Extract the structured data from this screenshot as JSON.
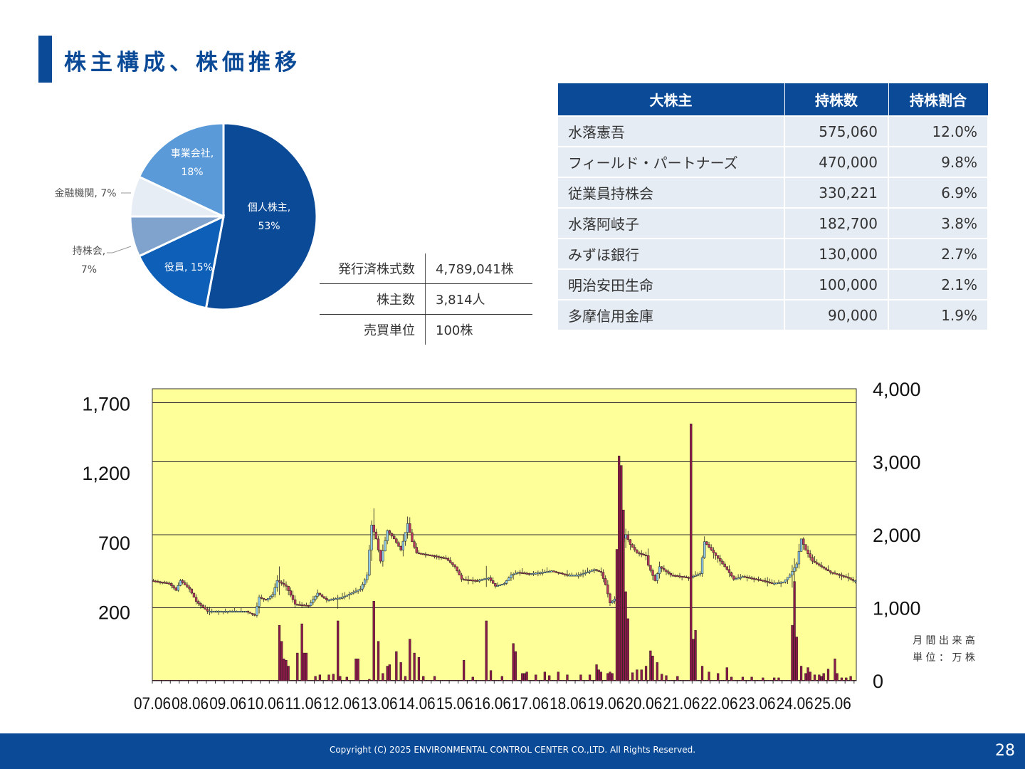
{
  "title": "株主構成、株価推移",
  "info_rows": [
    {
      "label": "発行済株式数",
      "value": "4,789,041株"
    },
    {
      "label": "株主数",
      "value": "3,814人"
    },
    {
      "label": "売買単位",
      "value": "100株"
    }
  ],
  "shareholders": {
    "headers": [
      "大株主",
      "持株数",
      "持株割合"
    ],
    "rows": [
      {
        "name": "水落憲吾",
        "shares": "575,060",
        "ratio": "12.0%"
      },
      {
        "name": "フィールド・パートナーズ",
        "shares": "470,000",
        "ratio": "9.8%"
      },
      {
        "name": "従業員持株会",
        "shares": "330,221",
        "ratio": "6.9%"
      },
      {
        "name": "水落阿岐子",
        "shares": "182,700",
        "ratio": "3.8%"
      },
      {
        "name": "みずほ銀行",
        "shares": "130,000",
        "ratio": "2.7%"
      },
      {
        "name": "明治安田生命",
        "shares": "100,000",
        "ratio": "2.1%"
      },
      {
        "name": "多摩信用金庫",
        "shares": "90,000",
        "ratio": "1.9%"
      }
    ]
  },
  "chart_data": [
    {
      "type": "pie",
      "slices": [
        {
          "name": "個人株主",
          "value": 53,
          "label_line1": "個人株主,",
          "label_line2": "53%",
          "color": "#0b4a97"
        },
        {
          "name": "役員",
          "value": 15,
          "label_line1": "役員, 15%",
          "label_line2": "",
          "color": "#0d5fb8"
        },
        {
          "name": "持株会",
          "value": 7,
          "label_line1": "持株会,",
          "label_line2": "7%",
          "color": "#7fa3cc"
        },
        {
          "name": "金融機関",
          "value": 7,
          "label_line1": "金融機関, 7%",
          "label_line2": "",
          "color": "#e6edf5"
        },
        {
          "name": "事業会社",
          "value": 18,
          "label_line1": "事業会社,",
          "label_line2": "18%",
          "color": "#5a9ad8"
        }
      ]
    },
    {
      "type": "candlestick_volume",
      "x_ticks": [
        "07.06",
        "08.06",
        "09.06",
        "10.06",
        "11.06",
        "12.06",
        "13.06",
        "14.06",
        "15.06",
        "16.06",
        "17.06",
        "18.06",
        "19.06",
        "20.06",
        "21.06",
        "22.06",
        "23.06",
        "24.06",
        "25.06"
      ],
      "price_ticks": [
        200,
        700,
        1200,
        1700
      ],
      "price_range": [
        -300,
        1800
      ],
      "volume_ticks": [
        "0",
        "1,000",
        "2,000",
        "3,000",
        "4,000"
      ],
      "volume_tick_values": [
        0,
        1000,
        2000,
        3000,
        4000
      ],
      "volume_range": [
        0,
        4000
      ],
      "volume_unit_line1": "月 間 出 来 高",
      "volume_unit_line2": "単 位 ： 万 株",
      "background_color": "#ffff99",
      "up_color": "#8ec7e8",
      "down_color": "#b8385e",
      "price_anchors": [
        [
          0,
          420
        ],
        [
          8,
          400
        ],
        [
          11,
          350
        ],
        [
          13,
          420
        ],
        [
          17,
          360
        ],
        [
          20,
          270
        ],
        [
          25,
          200
        ],
        [
          36,
          200
        ],
        [
          42,
          200
        ],
        [
          46,
          170
        ],
        [
          48,
          300
        ],
        [
          51,
          280
        ],
        [
          54,
          320
        ],
        [
          56,
          420
        ],
        [
          60,
          380
        ],
        [
          64,
          250
        ],
        [
          70,
          240
        ],
        [
          74,
          330
        ],
        [
          78,
          280
        ],
        [
          85,
          300
        ],
        [
          93,
          360
        ],
        [
          96,
          460
        ],
        [
          98,
          820
        ],
        [
          100,
          720
        ],
        [
          102,
          560
        ],
        [
          105,
          780
        ],
        [
          108,
          720
        ],
        [
          111,
          640
        ],
        [
          114,
          830
        ],
        [
          116,
          700
        ],
        [
          118,
          620
        ],
        [
          125,
          600
        ],
        [
          131,
          580
        ],
        [
          135,
          520
        ],
        [
          138,
          430
        ],
        [
          145,
          420
        ],
        [
          150,
          440
        ],
        [
          153,
          380
        ],
        [
          157,
          400
        ],
        [
          160,
          460
        ],
        [
          163,
          480
        ],
        [
          168,
          470
        ],
        [
          174,
          480
        ],
        [
          178,
          490
        ],
        [
          185,
          460
        ],
        [
          190,
          460
        ],
        [
          197,
          500
        ],
        [
          200,
          480
        ],
        [
          202,
          390
        ],
        [
          204,
          260
        ],
        [
          207,
          300
        ],
        [
          209,
          700
        ],
        [
          211,
          750
        ],
        [
          213,
          680
        ],
        [
          216,
          620
        ],
        [
          220,
          600
        ],
        [
          221,
          530
        ],
        [
          224,
          420
        ],
        [
          226,
          520
        ],
        [
          231,
          460
        ],
        [
          236,
          450
        ],
        [
          239,
          440
        ],
        [
          244,
          470
        ],
        [
          246,
          700
        ],
        [
          249,
          640
        ],
        [
          253,
          560
        ],
        [
          256,
          500
        ],
        [
          259,
          430
        ],
        [
          263,
          450
        ],
        [
          266,
          440
        ],
        [
          272,
          420
        ],
        [
          276,
          400
        ],
        [
          281,
          410
        ],
        [
          284,
          460
        ],
        [
          287,
          540
        ],
        [
          289,
          720
        ],
        [
          291,
          640
        ],
        [
          294,
          560
        ],
        [
          298,
          520
        ],
        [
          302,
          480
        ],
        [
          306,
          460
        ],
        [
          310,
          440
        ],
        [
          312,
          420
        ]
      ],
      "volume_spikes": [
        [
          56,
          760
        ],
        [
          57,
          540
        ],
        [
          58,
          300
        ],
        [
          59,
          280
        ],
        [
          60,
          200
        ],
        [
          64,
          380
        ],
        [
          66,
          780
        ],
        [
          67,
          380
        ],
        [
          68,
          380
        ],
        [
          72,
          60
        ],
        [
          74,
          80
        ],
        [
          78,
          80
        ],
        [
          80,
          90
        ],
        [
          82,
          820
        ],
        [
          83,
          60
        ],
        [
          86,
          50
        ],
        [
          90,
          300
        ],
        [
          91,
          300
        ],
        [
          96,
          20
        ],
        [
          98,
          1090
        ],
        [
          100,
          540
        ],
        [
          102,
          100
        ],
        [
          104,
          200
        ],
        [
          105,
          220
        ],
        [
          108,
          400
        ],
        [
          110,
          250
        ],
        [
          112,
          60
        ],
        [
          114,
          570
        ],
        [
          116,
          380
        ],
        [
          118,
          320
        ],
        [
          120,
          60
        ],
        [
          125,
          60
        ],
        [
          138,
          280
        ],
        [
          142,
          50
        ],
        [
          148,
          820
        ],
        [
          150,
          140
        ],
        [
          155,
          60
        ],
        [
          160,
          510
        ],
        [
          161,
          400
        ],
        [
          164,
          100
        ],
        [
          165,
          100
        ],
        [
          166,
          120
        ],
        [
          170,
          80
        ],
        [
          174,
          120
        ],
        [
          176,
          70
        ],
        [
          180,
          120
        ],
        [
          184,
          80
        ],
        [
          190,
          80
        ],
        [
          194,
          80
        ],
        [
          197,
          220
        ],
        [
          198,
          150
        ],
        [
          199,
          120
        ],
        [
          202,
          100
        ],
        [
          203,
          120
        ],
        [
          204,
          100
        ],
        [
          206,
          1800
        ],
        [
          207,
          3080
        ],
        [
          208,
          2950
        ],
        [
          209,
          2340
        ],
        [
          210,
          1220
        ],
        [
          211,
          850
        ],
        [
          213,
          110
        ],
        [
          215,
          150
        ],
        [
          217,
          150
        ],
        [
          219,
          200
        ],
        [
          221,
          410
        ],
        [
          222,
          340
        ],
        [
          224,
          250
        ],
        [
          226,
          90
        ],
        [
          228,
          70
        ],
        [
          233,
          60
        ],
        [
          239,
          3520
        ],
        [
          240,
          570
        ],
        [
          241,
          690
        ],
        [
          244,
          200
        ],
        [
          247,
          120
        ],
        [
          251,
          100
        ],
        [
          255,
          180
        ],
        [
          257,
          50
        ],
        [
          262,
          50
        ],
        [
          266,
          50
        ],
        [
          271,
          40
        ],
        [
          276,
          40
        ],
        [
          278,
          40
        ],
        [
          284,
          760
        ],
        [
          285,
          1360
        ],
        [
          286,
          600
        ],
        [
          288,
          200
        ],
        [
          290,
          100
        ],
        [
          291,
          180
        ],
        [
          292,
          120
        ],
        [
          294,
          80
        ],
        [
          296,
          80
        ],
        [
          297,
          60
        ],
        [
          298,
          100
        ],
        [
          300,
          160
        ],
        [
          303,
          300
        ],
        [
          304,
          100
        ],
        [
          306,
          40
        ],
        [
          308,
          40
        ],
        [
          310,
          60
        ]
      ]
    }
  ]
}
